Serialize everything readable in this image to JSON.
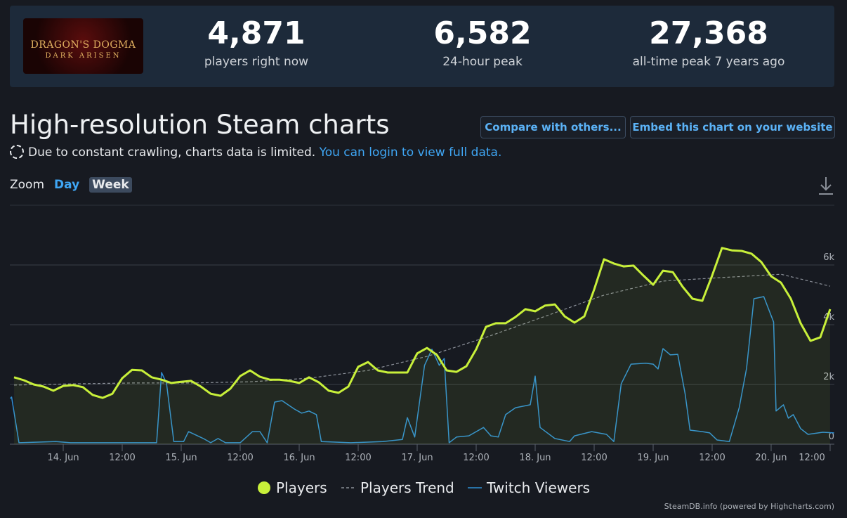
{
  "header": {
    "logo": {
      "title": "DRAGON'S DOGMA",
      "subtitle": "DARK ARISEN"
    },
    "stats": [
      {
        "value": "4,871",
        "label": "players right now"
      },
      {
        "value": "6,582",
        "label": "24-hour peak"
      },
      {
        "value": "27,368",
        "label": "all-time peak 7 years ago"
      }
    ]
  },
  "heading": "High-resolution Steam charts",
  "buttons": [
    "Compare with others...",
    "Embed this chart on your website"
  ],
  "notice": {
    "text": "Due to constant crawling, charts data is limited.",
    "link": "You can login to view full data."
  },
  "zoom": {
    "label": "Zoom",
    "options": [
      "Day",
      "Week"
    ],
    "active": "Week"
  },
  "chart_data": {
    "type": "line",
    "xlim": [
      -10.86,
      156.86
    ],
    "xticks": [
      {
        "value": 0,
        "label": "14. Jun"
      },
      {
        "value": 12,
        "label": "12:00"
      },
      {
        "value": 24,
        "label": "15. Jun"
      },
      {
        "value": 36,
        "label": "12:00"
      },
      {
        "value": 48,
        "label": "16. Jun"
      },
      {
        "value": 60,
        "label": "12:00"
      },
      {
        "value": 72,
        "label": "17. Jun"
      },
      {
        "value": 84,
        "label": "12:00"
      },
      {
        "value": 96,
        "label": "18. Jun"
      },
      {
        "value": 108,
        "label": "12:00"
      },
      {
        "value": 120,
        "label": "19. Jun"
      },
      {
        "value": 132,
        "label": "12:00"
      },
      {
        "value": 144,
        "label": "20. Jun"
      },
      {
        "value": 156,
        "label": "12:00"
      }
    ],
    "ylim": [
      0,
      8000
    ],
    "yticks": [
      0,
      {
        "value": 2000,
        "label": "2k"
      },
      {
        "value": 4000,
        "label": "4k"
      },
      {
        "value": 6000,
        "label": "6k"
      }
    ],
    "grid": true,
    "legend": "bottom",
    "series": [
      {
        "name": "Players",
        "color": "#c8f03a",
        "area": true,
        "x": [
          -10,
          -8,
          -6,
          -4,
          -2,
          0,
          2,
          4,
          6,
          8,
          10,
          12,
          14,
          16,
          18,
          20,
          22,
          24,
          26,
          28,
          30,
          32,
          34,
          36,
          38,
          40,
          42,
          44,
          46,
          48,
          50,
          52,
          54,
          56,
          58,
          60,
          62,
          64,
          66,
          68,
          70,
          72,
          74,
          76,
          78,
          80,
          82,
          84,
          86,
          88,
          90,
          92,
          94,
          96,
          98,
          100,
          102,
          104,
          106,
          108,
          110,
          112,
          114,
          116,
          118,
          120,
          122,
          124,
          126,
          128,
          130,
          132,
          134,
          136,
          138,
          140,
          142,
          144,
          146,
          148,
          150,
          152,
          154,
          156
        ],
        "values": [
          2240,
          2140,
          2000,
          1930,
          1790,
          1950,
          1980,
          1910,
          1650,
          1550,
          1690,
          2210,
          2490,
          2470,
          2240,
          2160,
          2050,
          2090,
          2120,
          1930,
          1690,
          1620,
          1860,
          2280,
          2470,
          2260,
          2160,
          2160,
          2120,
          2050,
          2240,
          2070,
          1790,
          1720,
          1930,
          2590,
          2750,
          2470,
          2400,
          2400,
          2400,
          3040,
          3220,
          2990,
          2470,
          2420,
          2610,
          3180,
          3930,
          4050,
          4050,
          4260,
          4520,
          4450,
          4640,
          4680,
          4280,
          4070,
          4280,
          5180,
          6190,
          6050,
          5950,
          5980,
          5650,
          5340,
          5810,
          5760,
          5270,
          4870,
          4800,
          5650,
          6570,
          6490,
          6470,
          6380,
          6100,
          5620,
          5410,
          4870,
          4050,
          3460,
          3580,
          4520
        ]
      },
      {
        "name": "Players Trend",
        "color": "#8a8f98",
        "dashed": true,
        "x": [
          -10,
          2,
          14,
          26,
          38,
          50,
          62,
          74,
          86,
          98,
          110,
          122,
          134,
          146,
          156
        ],
        "values": [
          1980,
          2020,
          2050,
          2050,
          2090,
          2210,
          2470,
          2940,
          3580,
          4280,
          4990,
          5460,
          5580,
          5690,
          5290
        ]
      },
      {
        "name": "Twitch Viewers",
        "color": "#2f8fd4",
        "x": [
          -10.8,
          -10.5,
          -9,
          -1.5,
          1.5,
          19,
          20,
          21,
          22.5,
          24.5,
          25.5,
          28.5,
          30,
          31.5,
          33,
          36,
          38.5,
          40,
          41.5,
          43,
          44.5,
          47,
          48.5,
          50,
          51.5,
          52.5,
          58.5,
          65,
          69,
          70,
          71.5,
          73.5,
          75,
          76.5,
          77.5,
          78.5,
          80,
          82.5,
          85.5,
          87,
          88.5,
          90,
          92,
          95,
          96,
          97,
          100,
          103,
          104,
          107.5,
          110.5,
          112,
          113.5,
          115.5,
          118.5,
          120,
          121,
          122,
          123.5,
          125,
          126.5,
          127.5,
          130,
          131.5,
          133,
          135.5,
          137.5,
          139,
          140.5,
          142.5,
          144.5,
          145,
          146.5,
          147.5,
          148.5,
          150,
          151.5,
          154.5,
          156.8
        ],
        "values": [
          1530,
          1580,
          50,
          90,
          50,
          50,
          2400,
          2050,
          90,
          90,
          420,
          190,
          50,
          190,
          50,
          50,
          420,
          420,
          50,
          1410,
          1460,
          1180,
          1040,
          1110,
          990,
          90,
          50,
          90,
          160,
          890,
          240,
          2640,
          3180,
          2640,
          2870,
          50,
          240,
          280,
          560,
          280,
          240,
          990,
          1220,
          1320,
          2280,
          560,
          190,
          90,
          280,
          420,
          330,
          90,
          2020,
          2680,
          2710,
          2680,
          2520,
          3200,
          2990,
          3010,
          1690,
          470,
          420,
          380,
          140,
          90,
          1220,
          2540,
          4870,
          4940,
          4090,
          1110,
          1320,
          870,
          990,
          520,
          330,
          400,
          380
        ]
      }
    ],
    "credit": "SteamDB.info (powered by Highcharts.com)"
  }
}
